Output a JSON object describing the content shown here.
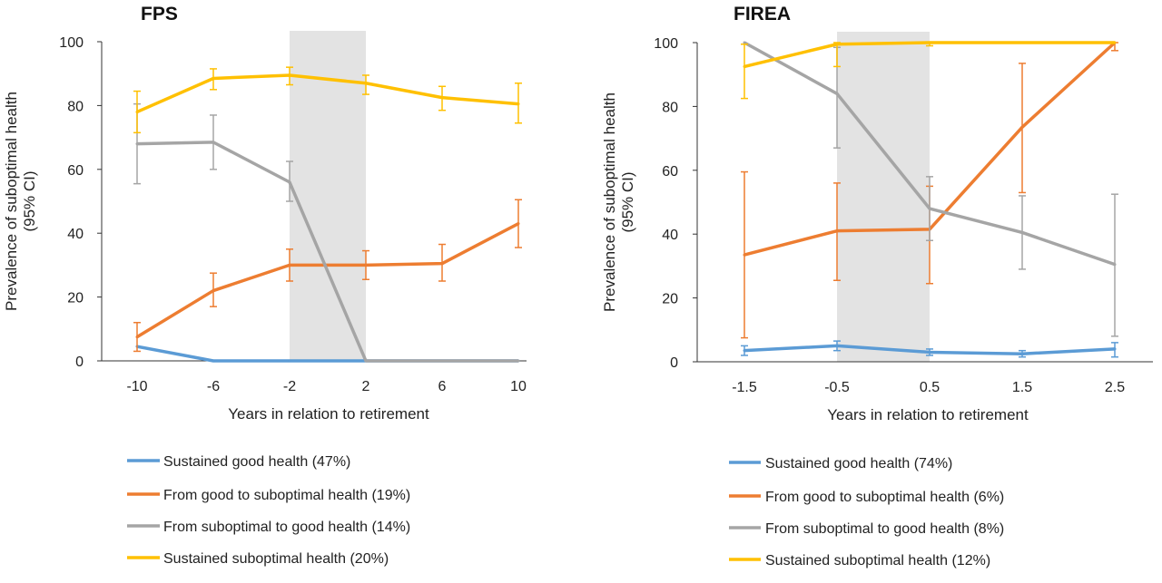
{
  "chart_data": [
    {
      "type": "line",
      "title": "FPS",
      "xlabel": "Years in relation to retirement",
      "ylabel": "Prevalence of suboptimal health (95% CI)",
      "ylim": [
        0,
        100
      ],
      "yticks": [
        "0",
        "20",
        "40",
        "60",
        "80",
        "100"
      ],
      "x": [
        -10,
        -6,
        -2,
        2,
        6,
        10
      ],
      "xtick_labels": [
        "-10",
        "-6",
        "-2",
        "2",
        "6",
        "10"
      ],
      "shaded_region": [
        -2,
        2
      ],
      "grid": false,
      "legend_position": "bottom",
      "series": [
        {
          "name": "Sustained good health (47%)",
          "color": "#5b9bd5",
          "values": [
            4.5,
            0,
            0,
            0,
            0,
            0
          ],
          "err_low": [
            null,
            null,
            null,
            null,
            null,
            null
          ],
          "err_high": [
            null,
            null,
            null,
            null,
            null,
            null
          ]
        },
        {
          "name": "From good to suboptimal health (19%)",
          "color": "#ed7d31",
          "values": [
            7.5,
            22,
            30,
            30,
            30.5,
            43
          ],
          "err_low": [
            3,
            17,
            25,
            25.5,
            25,
            35.5
          ],
          "err_high": [
            12,
            27.5,
            35,
            34.5,
            36.5,
            50.5
          ]
        },
        {
          "name": "From suboptimal to good health (14%)",
          "color": "#a5a5a5",
          "values": [
            68,
            68.5,
            56,
            0,
            0,
            0
          ],
          "err_low": [
            55.5,
            60,
            50,
            null,
            null,
            null
          ],
          "err_high": [
            80.5,
            77,
            62.5,
            null,
            null,
            null
          ]
        },
        {
          "name": "Sustained suboptimal health (20%)",
          "color": "#ffc000",
          "values": [
            78,
            88.5,
            89.5,
            87,
            82.5,
            80.5
          ],
          "err_low": [
            71.5,
            85,
            86.5,
            83.5,
            78.5,
            74.5
          ],
          "err_high": [
            84.5,
            91.5,
            92,
            89.5,
            86,
            87
          ]
        }
      ]
    },
    {
      "type": "line",
      "title": "FIREA",
      "xlabel": "Years in relation to retirement",
      "ylabel": "Prevalence of suboptimal health (95% CI)",
      "ylim": [
        0,
        100
      ],
      "yticks": [
        "0",
        "20",
        "40",
        "60",
        "80",
        "100"
      ],
      "x": [
        -1.5,
        -0.5,
        0.5,
        1.5,
        2.5
      ],
      "xtick_labels": [
        "-1.5",
        "-0.5",
        "0.5",
        "1.5",
        "2.5"
      ],
      "shaded_region": [
        -0.5,
        0.5
      ],
      "grid": false,
      "legend_position": "bottom",
      "series": [
        {
          "name": "Sustained good health (74%)",
          "color": "#5b9bd5",
          "values": [
            3.5,
            5,
            3,
            2.5,
            4
          ],
          "err_low": [
            2,
            3.5,
            2,
            1.5,
            1.5
          ],
          "err_high": [
            5,
            6.5,
            4,
            3.5,
            6
          ]
        },
        {
          "name": "From good to suboptimal health (6%)",
          "color": "#ed7d31",
          "values": [
            33.5,
            41,
            41.5,
            73.5,
            100
          ],
          "err_low": [
            7.5,
            25.5,
            24.5,
            53,
            97.5
          ],
          "err_high": [
            59.5,
            56,
            55,
            93.5,
            100
          ]
        },
        {
          "name": "From suboptimal to good health (8%)",
          "color": "#a5a5a5",
          "values": [
            100,
            84,
            48,
            40.5,
            30.5
          ],
          "err_low": [
            null,
            67,
            38,
            29,
            8
          ],
          "err_high": [
            null,
            98.5,
            58,
            52,
            52.5
          ]
        },
        {
          "name": "Sustained suboptimal health (12%)",
          "color": "#ffc000",
          "values": [
            92.5,
            99.5,
            100,
            100,
            100
          ],
          "err_low": [
            82.5,
            92.5,
            99,
            null,
            null
          ],
          "err_high": [
            99.5,
            100,
            100,
            null,
            null
          ]
        }
      ]
    }
  ]
}
